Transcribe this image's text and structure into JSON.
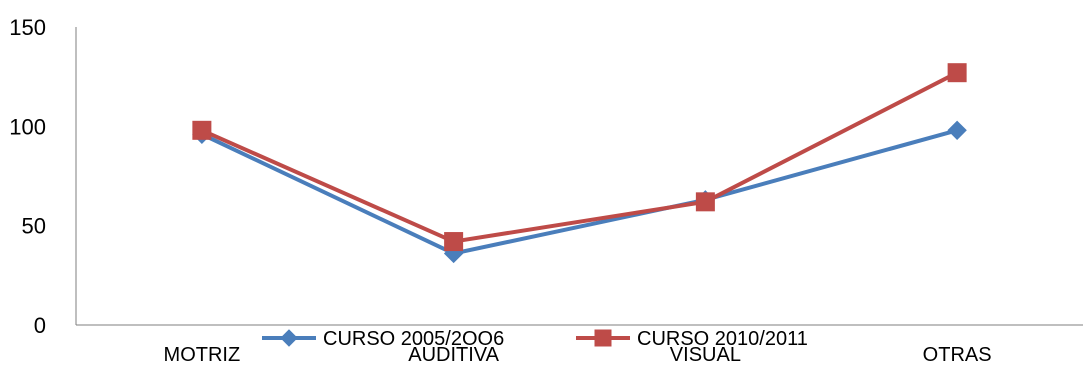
{
  "chart_data": {
    "type": "line",
    "title": "",
    "xlabel": "",
    "ylabel": "",
    "categories": [
      "MOTRIZ",
      "AUDITIVA",
      "VISUAL",
      "OTRAS"
    ],
    "ylim": [
      0,
      150
    ],
    "yticks": [
      "0",
      "50",
      "100",
      "150"
    ],
    "grid": false,
    "legend_position": "bottom",
    "series": [
      {
        "name": "CURSO  2005/2OO6",
        "values": [
          96,
          36,
          63,
          98
        ],
        "color": "#4a7ebb",
        "marker": "diamond"
      },
      {
        "name": "CURSO 2010/2011",
        "values": [
          98,
          42,
          62,
          127
        ],
        "color": "#be4b48",
        "marker": "square"
      }
    ]
  }
}
